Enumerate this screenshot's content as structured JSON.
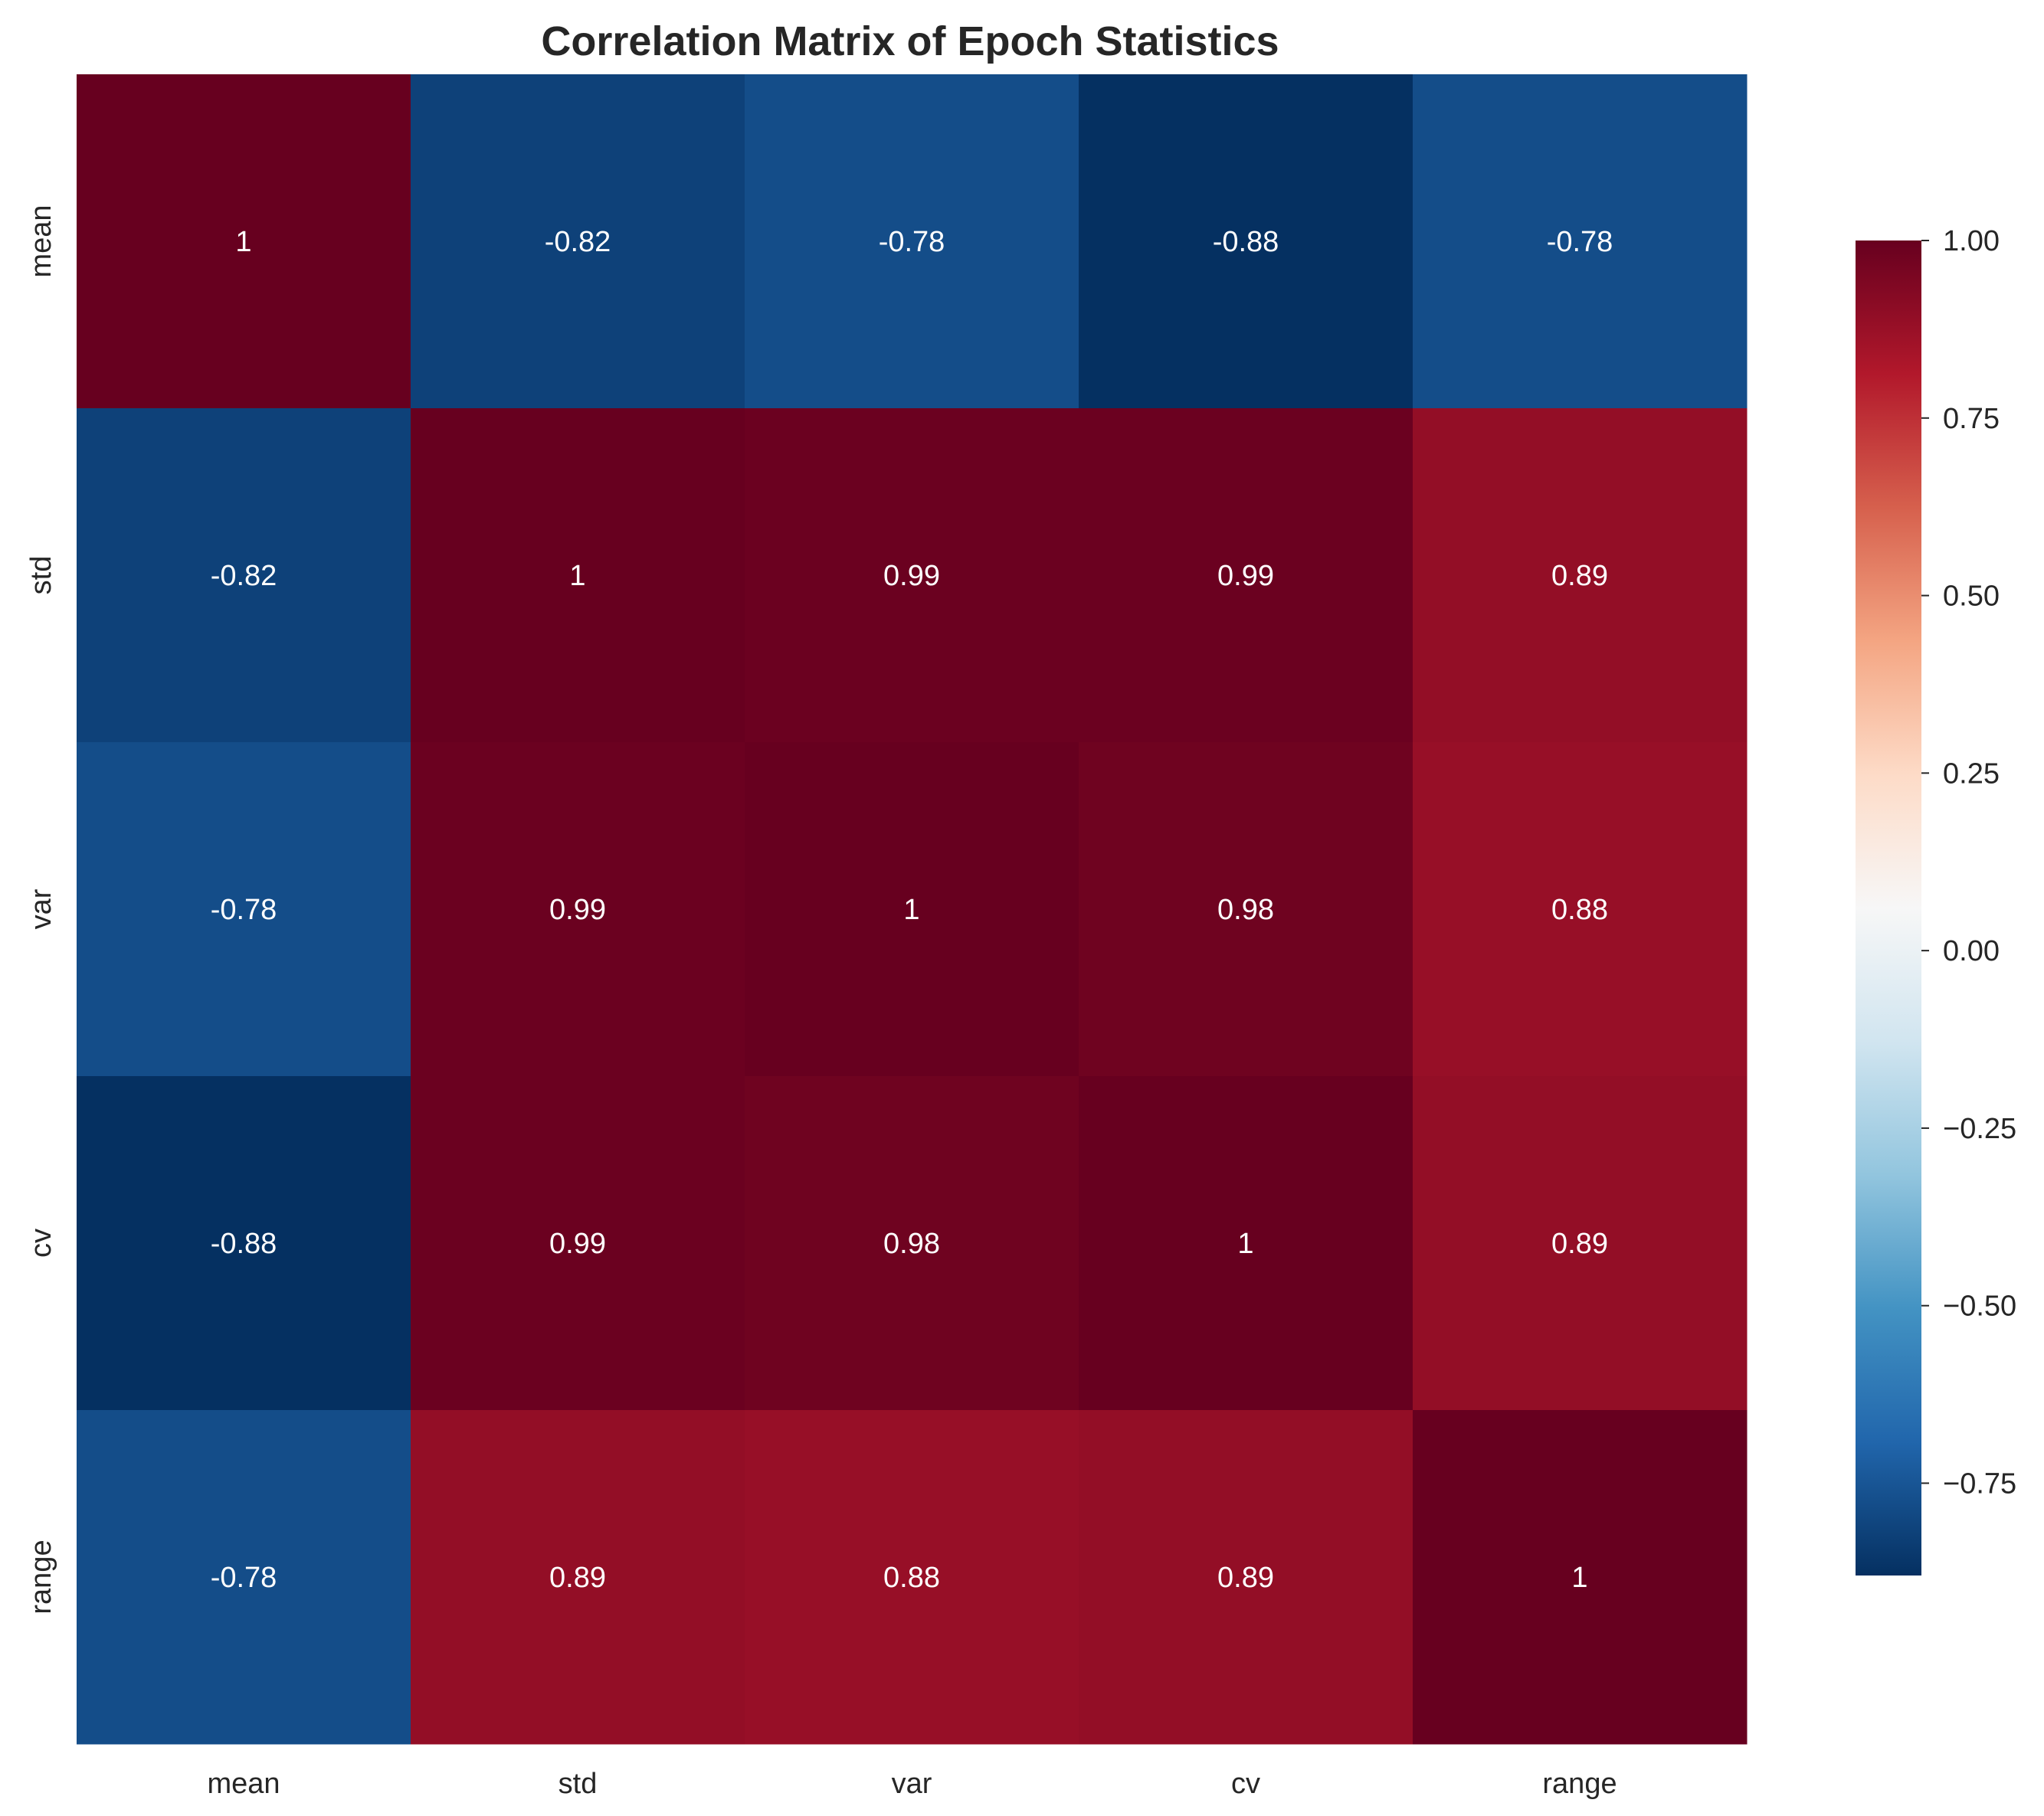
{
  "chart_data": {
    "type": "heatmap",
    "title": "Correlation Matrix of Epoch Statistics",
    "xlabel": "",
    "ylabel": "",
    "x_categories": [
      "mean",
      "std",
      "var",
      "cv",
      "range"
    ],
    "y_categories": [
      "mean",
      "std",
      "var",
      "cv",
      "range"
    ],
    "values": [
      [
        1,
        -0.82,
        -0.78,
        -0.88,
        -0.78
      ],
      [
        -0.82,
        1,
        0.99,
        0.99,
        0.89
      ],
      [
        -0.78,
        0.99,
        1,
        0.98,
        0.88
      ],
      [
        -0.88,
        0.99,
        0.98,
        1,
        0.89
      ],
      [
        -0.78,
        0.89,
        0.88,
        0.89,
        1
      ]
    ],
    "value_labels": [
      [
        "1",
        "-0.82",
        "-0.78",
        "-0.88",
        "-0.78"
      ],
      [
        "-0.82",
        "1",
        "0.99",
        "0.99",
        "0.89"
      ],
      [
        "-0.78",
        "0.99",
        "1",
        "0.98",
        "0.88"
      ],
      [
        "-0.88",
        "0.99",
        "0.98",
        "1",
        "0.89"
      ],
      [
        "-0.78",
        "0.89",
        "0.88",
        "0.89",
        "1"
      ]
    ],
    "colormap": "RdBu_r",
    "colormap_stops": [
      "#053061",
      "#2166ac",
      "#4393c3",
      "#92c5de",
      "#d1e5f0",
      "#f7f7f7",
      "#fddbc7",
      "#f4a582",
      "#d6604d",
      "#b2182b",
      "#67001f"
    ],
    "vmin": -0.88,
    "vmax": 1,
    "colorbar": {
      "ticks": [
        1.0,
        0.75,
        0.5,
        0.25,
        0.0,
        -0.25,
        -0.5,
        -0.75
      ],
      "tick_labels": [
        "1.00",
        "0.75",
        "0.50",
        "0.25",
        "0.00",
        "−0.25",
        "−0.50",
        "−0.75"
      ],
      "placement": "right"
    },
    "grid": false
  }
}
